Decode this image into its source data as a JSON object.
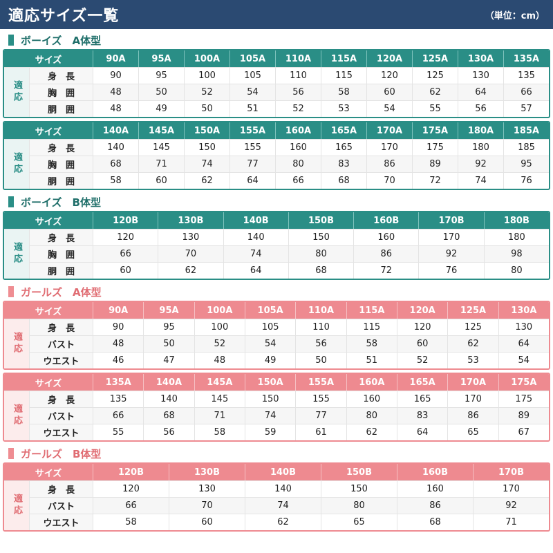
{
  "header": {
    "title": "適応サイズ一覧",
    "unit": "（単位：cm）"
  },
  "labels": {
    "size": "サイズ",
    "group": "適応"
  },
  "tables": [
    {
      "theme": "boys",
      "title": "ボーイズ　A体型",
      "blocks": [
        {
          "sizes": [
            "90A",
            "95A",
            "100A",
            "105A",
            "110A",
            "115A",
            "120A",
            "125A",
            "130A",
            "135A"
          ],
          "rows": [
            {
              "label": "身　長",
              "values": [
                "90",
                "95",
                "100",
                "105",
                "110",
                "115",
                "120",
                "125",
                "130",
                "135"
              ]
            },
            {
              "label": "胸　囲",
              "values": [
                "48",
                "50",
                "52",
                "54",
                "56",
                "58",
                "60",
                "62",
                "64",
                "66"
              ]
            },
            {
              "label": "胴　囲",
              "values": [
                "48",
                "49",
                "50",
                "51",
                "52",
                "53",
                "54",
                "55",
                "56",
                "57"
              ]
            }
          ]
        },
        {
          "sizes": [
            "140A",
            "145A",
            "150A",
            "155A",
            "160A",
            "165A",
            "170A",
            "175A",
            "180A",
            "185A"
          ],
          "rows": [
            {
              "label": "身　長",
              "values": [
                "140",
                "145",
                "150",
                "155",
                "160",
                "165",
                "170",
                "175",
                "180",
                "185"
              ]
            },
            {
              "label": "胸　囲",
              "values": [
                "68",
                "71",
                "74",
                "77",
                "80",
                "83",
                "86",
                "89",
                "92",
                "95"
              ]
            },
            {
              "label": "胴　囲",
              "values": [
                "58",
                "60",
                "62",
                "64",
                "66",
                "68",
                "70",
                "72",
                "74",
                "76"
              ]
            }
          ]
        }
      ]
    },
    {
      "theme": "boys",
      "title": "ボーイズ　B体型",
      "blocks": [
        {
          "sizes": [
            "120B",
            "130B",
            "140B",
            "150B",
            "160B",
            "170B",
            "180B"
          ],
          "rows": [
            {
              "label": "身　長",
              "values": [
                "120",
                "130",
                "140",
                "150",
                "160",
                "170",
                "180"
              ]
            },
            {
              "label": "胸　囲",
              "values": [
                "66",
                "70",
                "74",
                "80",
                "86",
                "92",
                "98"
              ]
            },
            {
              "label": "胴　囲",
              "values": [
                "60",
                "62",
                "64",
                "68",
                "72",
                "76",
                "80"
              ]
            }
          ]
        }
      ]
    },
    {
      "theme": "girls",
      "title": "ガールズ　A体型",
      "blocks": [
        {
          "sizes": [
            "90A",
            "95A",
            "100A",
            "105A",
            "110A",
            "115A",
            "120A",
            "125A",
            "130A"
          ],
          "rows": [
            {
              "label": "身　長",
              "values": [
                "90",
                "95",
                "100",
                "105",
                "110",
                "115",
                "120",
                "125",
                "130"
              ]
            },
            {
              "label": "バスト",
              "values": [
                "48",
                "50",
                "52",
                "54",
                "56",
                "58",
                "60",
                "62",
                "64"
              ]
            },
            {
              "label": "ウエスト",
              "values": [
                "46",
                "47",
                "48",
                "49",
                "50",
                "51",
                "52",
                "53",
                "54"
              ]
            }
          ]
        },
        {
          "sizes": [
            "135A",
            "140A",
            "145A",
            "150A",
            "155A",
            "160A",
            "165A",
            "170A",
            "175A"
          ],
          "rows": [
            {
              "label": "身　長",
              "values": [
                "135",
                "140",
                "145",
                "150",
                "155",
                "160",
                "165",
                "170",
                "175"
              ]
            },
            {
              "label": "バスト",
              "values": [
                "66",
                "68",
                "71",
                "74",
                "77",
                "80",
                "83",
                "86",
                "89"
              ]
            },
            {
              "label": "ウエスト",
              "values": [
                "55",
                "56",
                "58",
                "59",
                "61",
                "62",
                "64",
                "65",
                "67"
              ]
            }
          ]
        }
      ]
    },
    {
      "theme": "girls",
      "title": "ガールズ　B体型",
      "blocks": [
        {
          "sizes": [
            "120B",
            "130B",
            "140B",
            "150B",
            "160B",
            "170B"
          ],
          "rows": [
            {
              "label": "身　長",
              "values": [
                "120",
                "130",
                "140",
                "150",
                "160",
                "170"
              ]
            },
            {
              "label": "バスト",
              "values": [
                "66",
                "70",
                "74",
                "80",
                "86",
                "92"
              ]
            },
            {
              "label": "ウエスト",
              "values": [
                "58",
                "60",
                "62",
                "65",
                "68",
                "71"
              ]
            }
          ]
        }
      ]
    }
  ]
}
